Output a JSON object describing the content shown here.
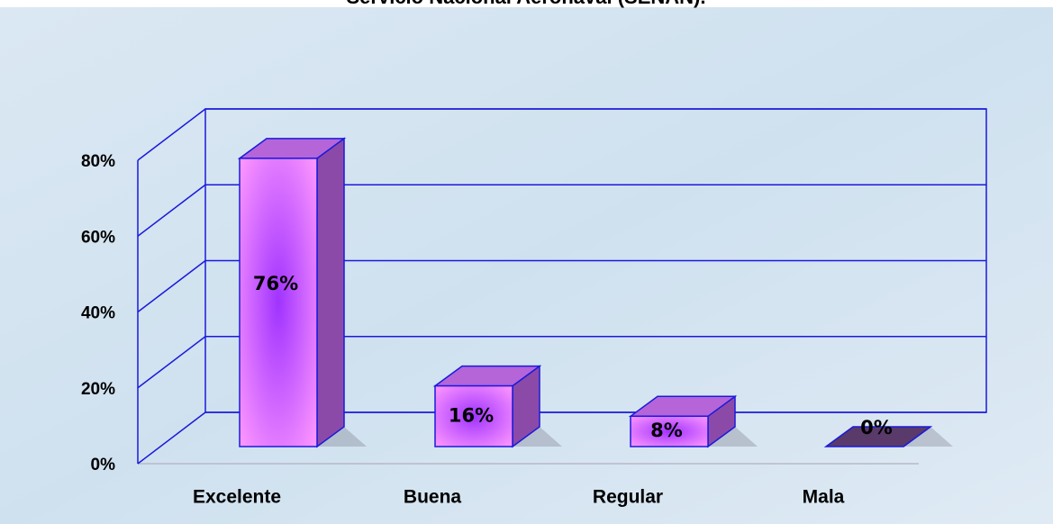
{
  "chart_data": {
    "type": "bar3d",
    "title": "Servicio Nacional Aeronaval (SENAN).",
    "categories": [
      "Excelente",
      "Buena",
      "Regular",
      "Mala"
    ],
    "values": [
      76,
      16,
      8,
      0
    ],
    "value_labels": [
      "76%",
      "16%",
      "8%",
      "0%"
    ],
    "color": "#ee88ff",
    "ylim": [
      0,
      80
    ],
    "yticks": [
      {
        "value": 0,
        "label": "0%"
      },
      {
        "value": 20,
        "label": "20%"
      },
      {
        "value": 40,
        "label": "40%"
      },
      {
        "value": 60,
        "label": "60%"
      },
      {
        "value": 80,
        "label": "80%"
      }
    ],
    "grid": true
  }
}
